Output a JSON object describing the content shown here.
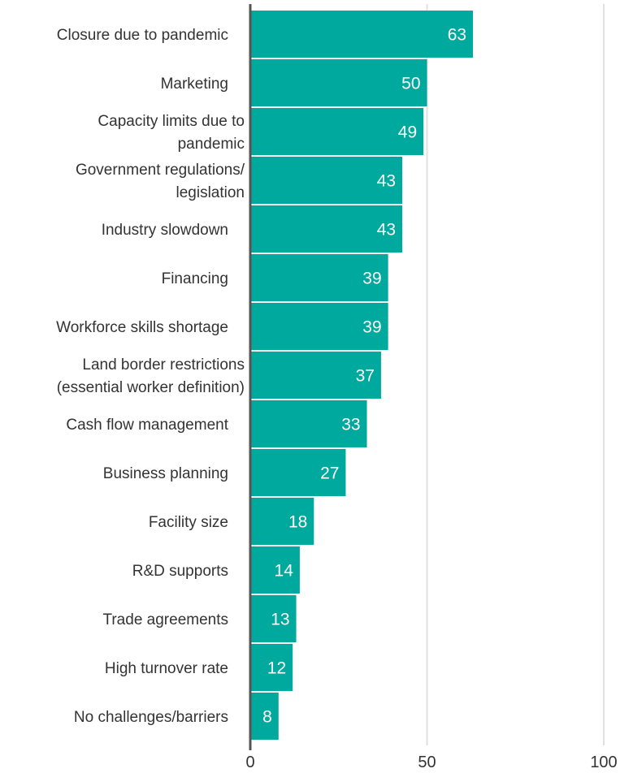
{
  "chart_data": {
    "type": "bar",
    "orientation": "horizontal",
    "title": "",
    "xlabel": "",
    "ylabel": "",
    "categories": [
      "Closure due to pandemic",
      "Marketing",
      "Capacity limits due to pandemic",
      "Government regulations/ legislation",
      "Industry slowdown",
      "Financing",
      "Workforce skills shortage",
      "Land border restrictions (essential worker definition)",
      "Cash flow management",
      "Business planning",
      "Facility size",
      "R&D supports",
      "Trade agreements",
      "High turnover rate",
      "No challenges/barriers"
    ],
    "category_lines": [
      [
        "Closure due to pandemic"
      ],
      [
        "Marketing"
      ],
      [
        "Capacity limits due to",
        "pandemic"
      ],
      [
        "Government regulations/",
        "legislation"
      ],
      [
        "Industry slowdown"
      ],
      [
        "Financing"
      ],
      [
        "Workforce skills shortage"
      ],
      [
        "Land border restrictions",
        "(essential worker definition)"
      ],
      [
        "Cash flow management"
      ],
      [
        "Business planning"
      ],
      [
        "Facility size"
      ],
      [
        "R&D supports"
      ],
      [
        "Trade agreements"
      ],
      [
        "High turnover rate"
      ],
      [
        "No challenges/barriers"
      ]
    ],
    "values": [
      63,
      50,
      49,
      43,
      43,
      39,
      39,
      37,
      33,
      27,
      18,
      14,
      13,
      12,
      8
    ],
    "xlim": [
      0,
      100
    ],
    "xticks": [
      0,
      50,
      100
    ],
    "grid": true,
    "data_labels": true,
    "bar_color": "#00a99d",
    "axis_color": "#555555",
    "grid_color": "#e0e0e0"
  }
}
